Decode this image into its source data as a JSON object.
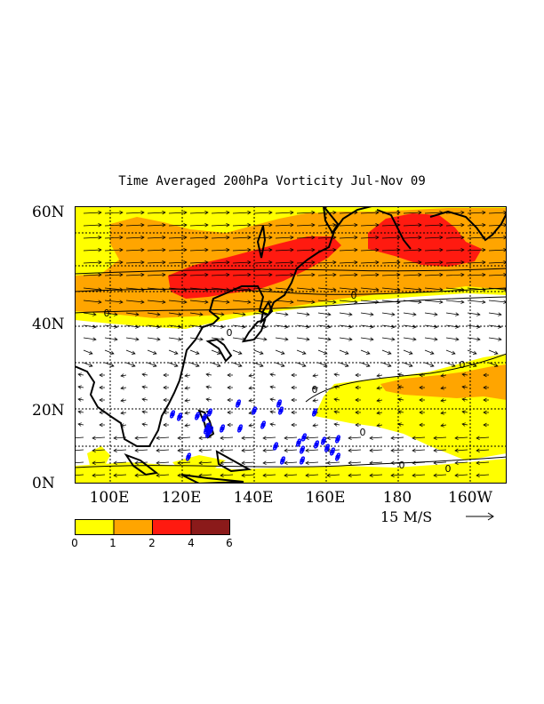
{
  "title": "Time Averaged 200hPa Vorticity Jul-Nov 09",
  "y_ticks": [
    "60N",
    "40N",
    "20N",
    "0N"
  ],
  "x_ticks": [
    "100E",
    "120E",
    "140E",
    "160E",
    "180",
    "160W"
  ],
  "vector_reference": {
    "label": "15 M/S",
    "speed_m_s": 15
  },
  "colorbar": {
    "levels": [
      "0",
      "1",
      "2",
      "4",
      "6"
    ],
    "colors": [
      "#ffff00",
      "#ffa500",
      "#ff1a10",
      "#8b1a1a"
    ]
  },
  "contour_labels": [
    "0",
    "0",
    "0",
    "0",
    "0",
    "0",
    "0",
    "0"
  ],
  "storm_symbol_count": 30,
  "colors": {
    "yellow": "#ffff00",
    "orange": "#ffa500",
    "red": "#ff1a10",
    "dark_red": "#8b1a1a",
    "storm": "#0000ff"
  }
}
